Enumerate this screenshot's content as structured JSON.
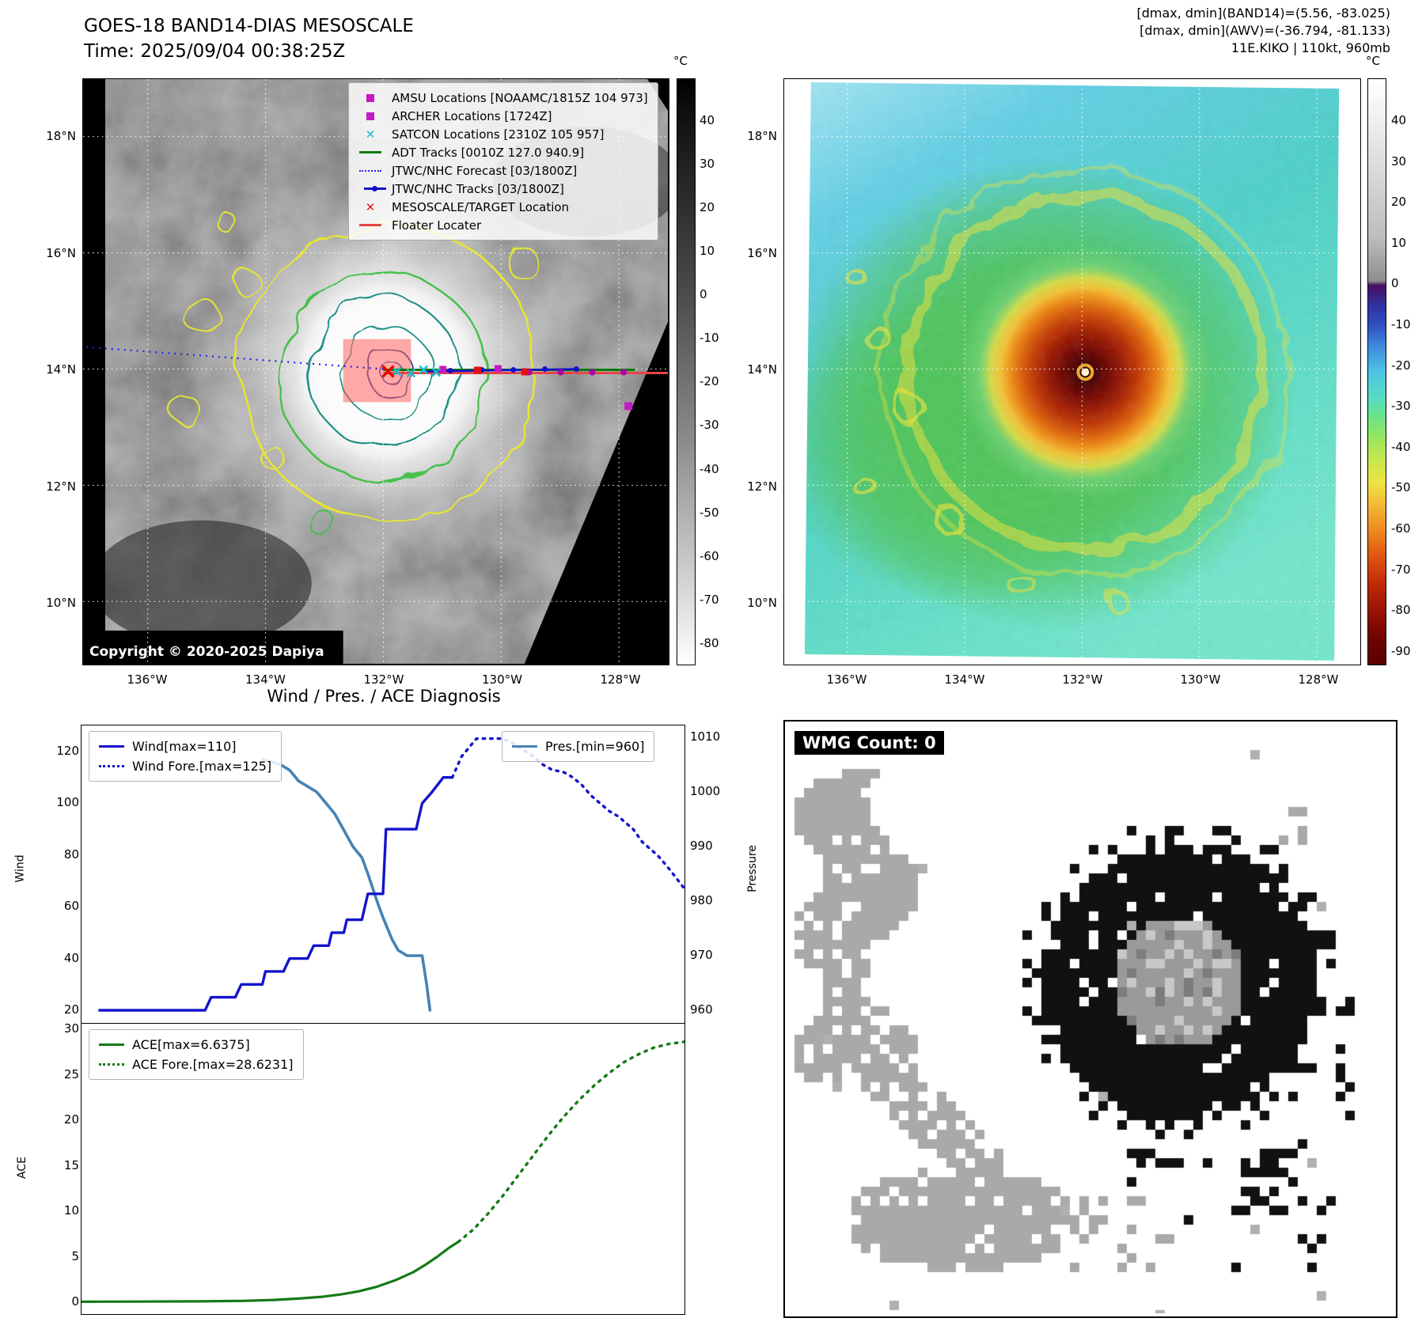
{
  "colors": {
    "wind_line": "#1414cc",
    "pressure_line": "#4682b4",
    "ace_line": "#157a15",
    "amsu_magenta": "#c419c4",
    "satcon_cyan": "#17becf",
    "adt_green": "#0a7a0a",
    "target_red": "#e61919"
  },
  "left_panel": {
    "title": "GOES-18 BAND14-DIAS MESOSCALE",
    "subtitle": "Time: 2025/09/04 00:38:25Z",
    "copyright": "Copyright © 2020-2025 Dapiya",
    "colorbar_unit": "°C",
    "colorbar_ticks": [
      "40",
      "30",
      "20",
      "10",
      "0",
      "-10",
      "-20",
      "-30",
      "-40",
      "-50",
      "-60",
      "-70",
      "-80"
    ],
    "lat_ticks": [
      "18°N",
      "16°N",
      "14°N",
      "12°N",
      "10°N"
    ],
    "lon_ticks": [
      "136°W",
      "134°W",
      "132°W",
      "130°W",
      "128°W"
    ],
    "legend": [
      {
        "label": "AMSU Locations [NOAAMC/1815Z 104 973]",
        "marker": "square",
        "color": "#c419c4"
      },
      {
        "label": "ARCHER Locations [1724Z]",
        "marker": "square",
        "color": "#c419c4"
      },
      {
        "label": "SATCON Locations [2310Z 105 957]",
        "marker": "x",
        "color": "#17becf"
      },
      {
        "label": "ADT Tracks [0010Z 127.0 940.9]",
        "marker": "line",
        "color": "#0a7a0a"
      },
      {
        "label": "JTWC/NHC Forecast [03/1800Z]",
        "marker": "dotted-line",
        "color": "#2222ee"
      },
      {
        "label": "JTWC/NHC Tracks [03/1800Z]",
        "marker": "line-dot",
        "color": "#1111cc"
      },
      {
        "label": "MESOSCALE/TARGET Location",
        "marker": "x",
        "color": "#e61919"
      },
      {
        "label": "Floater Locater",
        "marker": "line",
        "color": "#e64545"
      }
    ]
  },
  "right_panel": {
    "header_lines": [
      "[dmax, dmin](BAND14)=(5.56, -83.025)",
      "[dmax, dmin](AWV)=(-36.794, -81.133)",
      "11E.KIKO | 110kt, 960mb"
    ],
    "colorbar_unit": "°C",
    "colorbar_ticks": [
      "40",
      "30",
      "20",
      "10",
      "0",
      "-10",
      "-20",
      "-30",
      "-40",
      "-50",
      "-60",
      "-70",
      "-80",
      "-90"
    ],
    "lat_ticks": [
      "18°N",
      "16°N",
      "14°N",
      "12°N",
      "10°N"
    ],
    "lon_ticks": [
      "136°W",
      "134°W",
      "132°W",
      "130°W",
      "128°W"
    ]
  },
  "wmg_panel": {
    "label": "WMG Count: 0"
  },
  "chart_data": [
    {
      "type": "line",
      "title": "Wind / Pres. / ACE Diagnosis",
      "x_axis": {
        "range": [
          0,
          1
        ],
        "tick_labels_visible": false
      },
      "left_axis": {
        "label": "Wind",
        "range": [
          14.8,
          130.1
        ],
        "ticks": [
          120,
          100,
          80,
          60,
          40,
          20
        ]
      },
      "right_axis": {
        "label": "Pressure",
        "range": [
          957.5,
          1012.2
        ],
        "ticks": [
          1010,
          1000,
          990,
          980,
          970,
          960
        ]
      },
      "grid": false,
      "legend_positions": {
        "wind": "upper left",
        "pressure": "upper right"
      },
      "series": [
        {
          "name": "Wind[max=110]",
          "axis": "left",
          "style": "solid",
          "color": "#1414cc",
          "points": [
            [
              0.03,
              20
            ],
            [
              0.205,
              20
            ],
            [
              0.215,
              25
            ],
            [
              0.255,
              25
            ],
            [
              0.265,
              30
            ],
            [
              0.3,
              30
            ],
            [
              0.305,
              35
            ],
            [
              0.335,
              35
            ],
            [
              0.345,
              40
            ],
            [
              0.375,
              40
            ],
            [
              0.385,
              45
            ],
            [
              0.41,
              45
            ],
            [
              0.415,
              50
            ],
            [
              0.435,
              50
            ],
            [
              0.44,
              55
            ],
            [
              0.465,
              55
            ],
            [
              0.475,
              65
            ],
            [
              0.5,
              65
            ],
            [
              0.505,
              90
            ],
            [
              0.555,
              90
            ],
            [
              0.565,
              100
            ],
            [
              0.58,
              104
            ],
            [
              0.6,
              110
            ],
            [
              0.615,
              110
            ]
          ]
        },
        {
          "name": "Wind Fore.[max=125]",
          "axis": "left",
          "style": "dotted",
          "color": "#1414cc",
          "points": [
            [
              0.615,
              110
            ],
            [
              0.63,
              118
            ],
            [
              0.655,
              125
            ],
            [
              0.675,
              125
            ],
            [
              0.695,
              125
            ],
            [
              0.71,
              124
            ],
            [
              0.73,
              121
            ],
            [
              0.75,
              118
            ],
            [
              0.765,
              115
            ],
            [
              0.78,
              113
            ],
            [
              0.8,
              112
            ],
            [
              0.815,
              110
            ],
            [
              0.83,
              107
            ],
            [
              0.845,
              103
            ],
            [
              0.86,
              100
            ],
            [
              0.875,
              97
            ],
            [
              0.89,
              95
            ],
            [
              0.905,
              92
            ],
            [
              0.915,
              90
            ],
            [
              0.93,
              85
            ],
            [
              0.945,
              82
            ],
            [
              0.955,
              80
            ],
            [
              0.97,
              76
            ],
            [
              0.98,
              73
            ],
            [
              0.99,
              70
            ],
            [
              1.0,
              67
            ]
          ]
        },
        {
          "name": "Pres.[min=960]",
          "axis": "right",
          "style": "solid",
          "color": "#4682b4",
          "points": [
            [
              0.3,
              1006
            ],
            [
              0.33,
              1005
            ],
            [
              0.345,
              1004
            ],
            [
              0.36,
              1002
            ],
            [
              0.375,
              1001
            ],
            [
              0.39,
              1000
            ],
            [
              0.405,
              998
            ],
            [
              0.42,
              996
            ],
            [
              0.435,
              993
            ],
            [
              0.45,
              990
            ],
            [
              0.465,
              988
            ],
            [
              0.475,
              985
            ],
            [
              0.49,
              980
            ],
            [
              0.5,
              977
            ],
            [
              0.515,
              973
            ],
            [
              0.525,
              971
            ],
            [
              0.54,
              970
            ],
            [
              0.565,
              970
            ],
            [
              0.572,
              965
            ],
            [
              0.578,
              960
            ]
          ]
        }
      ]
    },
    {
      "type": "line",
      "x_axis": {
        "range": [
          0,
          1
        ],
        "tick_labels_visible": false
      },
      "left_axis": {
        "label": "ACE",
        "range": [
          -1.3,
          30.6
        ],
        "ticks": [
          30,
          25,
          20,
          15,
          10,
          5,
          0
        ]
      },
      "grid": false,
      "series": [
        {
          "name": "ACE[max=6.6375]",
          "axis": "left",
          "style": "solid",
          "color": "#157a15",
          "points": [
            [
              0.0,
              0.05
            ],
            [
              0.1,
              0.07
            ],
            [
              0.2,
              0.1
            ],
            [
              0.27,
              0.15
            ],
            [
              0.32,
              0.25
            ],
            [
              0.36,
              0.4
            ],
            [
              0.4,
              0.6
            ],
            [
              0.43,
              0.85
            ],
            [
              0.46,
              1.2
            ],
            [
              0.49,
              1.7
            ],
            [
              0.52,
              2.4
            ],
            [
              0.55,
              3.3
            ],
            [
              0.57,
              4.1
            ],
            [
              0.59,
              5.0
            ],
            [
              0.61,
              6.0
            ],
            [
              0.625,
              6.6375
            ]
          ]
        },
        {
          "name": "ACE Fore.[max=28.6231]",
          "axis": "left",
          "style": "dotted",
          "color": "#157a15",
          "points": [
            [
              0.625,
              6.6375
            ],
            [
              0.65,
              8.0
            ],
            [
              0.675,
              9.8
            ],
            [
              0.7,
              11.8
            ],
            [
              0.725,
              14.0
            ],
            [
              0.75,
              16.2
            ],
            [
              0.775,
              18.4
            ],
            [
              0.8,
              20.4
            ],
            [
              0.825,
              22.2
            ],
            [
              0.85,
              23.8
            ],
            [
              0.875,
              25.2
            ],
            [
              0.9,
              26.4
            ],
            [
              0.925,
              27.3
            ],
            [
              0.95,
              28.0
            ],
            [
              0.975,
              28.4
            ],
            [
              1.0,
              28.6231
            ]
          ]
        }
      ]
    }
  ]
}
